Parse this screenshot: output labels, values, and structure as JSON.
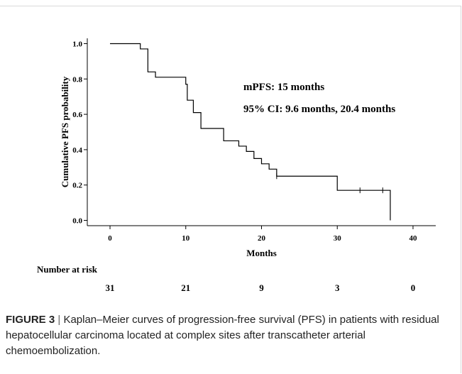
{
  "chart_data": {
    "type": "line",
    "step": true,
    "ylabel": "Cumulative PFS probability",
    "xlabel": "Months",
    "xlim": [
      -3,
      43
    ],
    "ylim": [
      -0.03,
      1.03
    ],
    "xticks": [
      0,
      10,
      20,
      30,
      40
    ],
    "yticks": [
      "0.0",
      "0.2",
      "0.4",
      "0.6",
      "0.8",
      "1.0"
    ],
    "x_tick_labels": [
      "0",
      "10",
      "20",
      "30",
      "40"
    ],
    "series": [
      {
        "steps": [
          [
            0,
            1.0
          ],
          [
            4,
            0.97
          ],
          [
            5,
            0.84
          ],
          [
            6,
            0.81
          ],
          [
            9,
            0.81
          ],
          [
            10,
            0.77
          ],
          [
            10.2,
            0.68
          ],
          [
            11,
            0.61
          ],
          [
            12,
            0.52
          ],
          [
            15,
            0.45
          ],
          [
            17,
            0.42
          ],
          [
            18,
            0.39
          ],
          [
            19,
            0.35
          ],
          [
            20,
            0.32
          ],
          [
            21,
            0.29
          ],
          [
            22,
            0.25
          ],
          [
            30,
            0.17
          ],
          [
            37,
            0.17
          ],
          [
            37,
            0.0
          ]
        ],
        "censored": [
          [
            22,
            0.25
          ],
          [
            33,
            0.17
          ],
          [
            36,
            0.17
          ]
        ]
      }
    ],
    "annotations": [
      "mPFS: 15 months",
      "95% CI: 9.6 months, 20.4 months"
    ],
    "risk_table": {
      "title": "Number at risk",
      "times": [
        0,
        10,
        20,
        30,
        40
      ],
      "values": [
        "31",
        "21",
        "9",
        "3",
        "0"
      ]
    }
  },
  "caption": {
    "label": "FIGURE 3",
    "separator": "|",
    "text": "Kaplan–Meier curves of progression-free survival (PFS) in patients with residual hepatocellular carcinoma located at complex sites after transcatheter arterial chemoembolization."
  }
}
